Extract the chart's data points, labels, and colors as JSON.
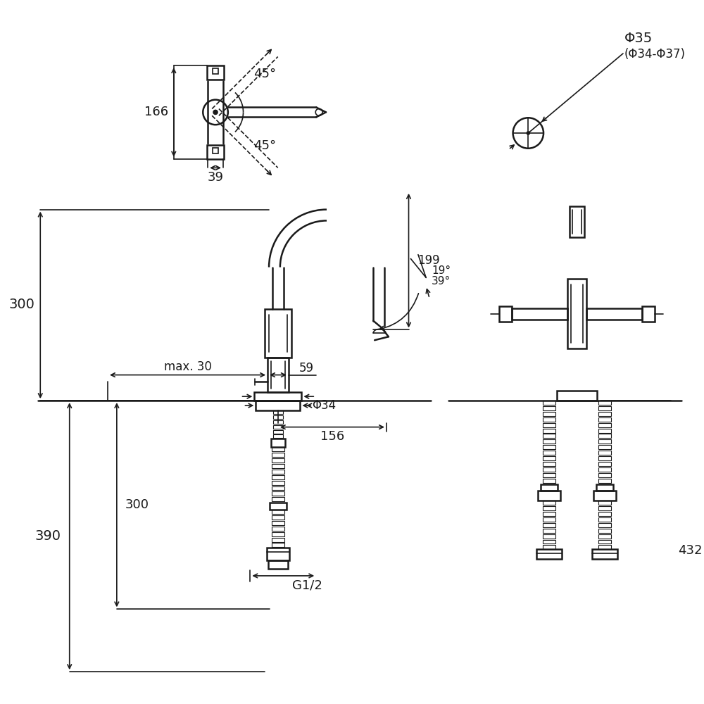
{
  "bg_color": "#ffffff",
  "line_color": "#1a1a1a",
  "fig_width": 10,
  "fig_height": 10,
  "dpi": 100,
  "texts": {
    "dim_166": "166",
    "dim_39": "39",
    "dim_45_top": "45°",
    "dim_45_bot": "45°",
    "phi35": "Φ35",
    "phi3437": "(Φ34-Φ37)",
    "dim_300_above": "300",
    "dim_max30": "max. 30",
    "dim_59": "59",
    "dim_19": "19°",
    "dim_39b": "39°",
    "dim_199": "199",
    "phi34": "Φ34",
    "dim_156": "156",
    "dim_300_below": "300",
    "dim_390": "390",
    "dim_432": "432",
    "dim_G12": "G1/2"
  }
}
